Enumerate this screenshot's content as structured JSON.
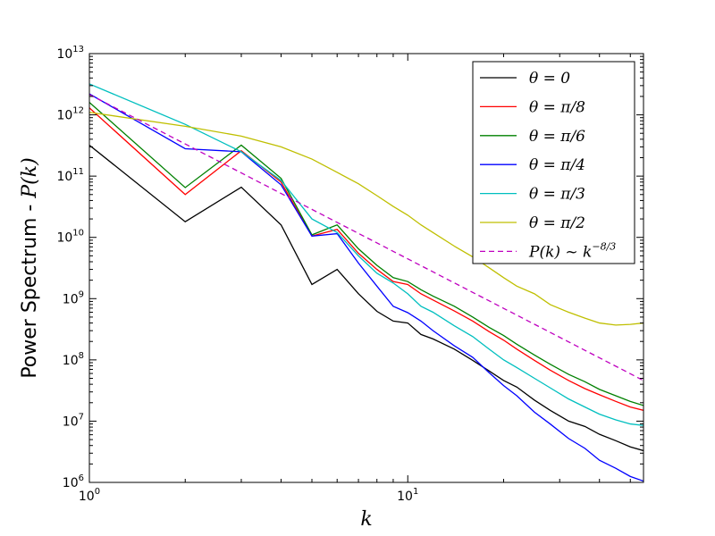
{
  "chart_data": {
    "type": "line",
    "title": "",
    "xlabel": "k",
    "ylabel_prefix": "Power Spectrum - ",
    "ylabel_math": "P(k)",
    "xscale": "log",
    "yscale": "log",
    "xlim": [
      1,
      55
    ],
    "ylim": [
      1000000.0,
      10000000000000.0
    ],
    "x_ticks": [
      {
        "value": 1,
        "base": "10",
        "exp": "0"
      },
      {
        "value": 10,
        "base": "10",
        "exp": "1"
      }
    ],
    "y_ticks": [
      {
        "value": 1000000.0,
        "base": "10",
        "exp": "6"
      },
      {
        "value": 10000000.0,
        "base": "10",
        "exp": "7"
      },
      {
        "value": 100000000.0,
        "base": "10",
        "exp": "8"
      },
      {
        "value": 1000000000.0,
        "base": "10",
        "exp": "9"
      },
      {
        "value": 10000000000.0,
        "base": "10",
        "exp": "10"
      },
      {
        "value": 100000000000.0,
        "base": "10",
        "exp": "11"
      },
      {
        "value": 1000000000000.0,
        "base": "10",
        "exp": "12"
      },
      {
        "value": 10000000000000.0,
        "base": "10",
        "exp": "13"
      }
    ],
    "legend_position": "top-right",
    "series": [
      {
        "name": "θ = 0",
        "legend_label": "θ = 0",
        "color": "#000000",
        "dashed": false,
        "x": [
          1,
          2,
          3,
          4,
          5,
          6,
          7,
          8,
          9,
          10,
          11,
          12,
          14,
          16,
          18,
          20,
          22,
          25,
          28,
          32,
          36,
          40,
          45,
          50,
          55
        ],
        "y": [
          320000000000.0,
          18000000000.0,
          66000000000.0,
          16000000000.0,
          1700000000.0,
          3000000000.0,
          1200000000.0,
          620000000.0,
          430000000.0,
          400000000.0,
          260000000.0,
          220000000.0,
          150000000.0,
          98000000.0,
          66000000.0,
          46000000.0,
          36000000.0,
          22000000.0,
          15000000.0,
          10000000.0,
          8200000.0,
          6100000.0,
          4800000.0,
          3800000.0,
          3300000.0
        ]
      },
      {
        "name": "θ = π/8",
        "legend_label": "θ = π/8",
        "color": "#ff0000",
        "dashed": false,
        "x": [
          1,
          2,
          3,
          4,
          5,
          6,
          7,
          8,
          9,
          10,
          11,
          12,
          14,
          16,
          18,
          20,
          22,
          25,
          28,
          32,
          36,
          40,
          45,
          50,
          55
        ],
        "y": [
          1300000000000.0,
          50000000000.0,
          260000000000.0,
          80000000000.0,
          10500000000.0,
          13500000000.0,
          5500000000.0,
          3000000000.0,
          1900000000.0,
          1700000000.0,
          1200000000.0,
          950000000.0,
          630000000.0,
          430000000.0,
          290000000.0,
          210000000.0,
          150000000.0,
          98000000.0,
          68000000.0,
          46000000.0,
          34000000.0,
          27000000.0,
          21000000.0,
          17000000.0,
          15000000.0
        ]
      },
      {
        "name": "θ = π/6",
        "legend_label": "θ = π/6",
        "color": "#008000",
        "dashed": false,
        "x": [
          1,
          2,
          3,
          4,
          5,
          6,
          7,
          8,
          9,
          10,
          11,
          12,
          14,
          16,
          18,
          20,
          22,
          25,
          28,
          32,
          36,
          40,
          45,
          50,
          55
        ],
        "y": [
          1600000000000.0,
          65000000000.0,
          320000000000.0,
          92000000000.0,
          11000000000.0,
          16000000000.0,
          6500000000.0,
          3500000000.0,
          2200000000.0,
          1900000000.0,
          1400000000.0,
          1100000000.0,
          750000000.0,
          500000000.0,
          340000000.0,
          250000000.0,
          180000000.0,
          120000000.0,
          85000000.0,
          58000000.0,
          44000000.0,
          33000000.0,
          26000000.0,
          21000000.0,
          18000000.0
        ]
      },
      {
        "name": "θ = π/4",
        "legend_label": "θ = π/4",
        "color": "#0000ff",
        "dashed": false,
        "x": [
          1,
          2,
          3,
          4,
          5,
          6,
          7,
          8,
          9,
          10,
          11,
          12,
          14,
          16,
          18,
          20,
          22,
          25,
          28,
          32,
          36,
          40,
          45,
          50,
          55
        ],
        "y": [
          2200000000000.0,
          280000000000.0,
          250000000000.0,
          72000000000.0,
          10500000000.0,
          11500000000.0,
          3800000000.0,
          1600000000.0,
          750000000.0,
          590000000.0,
          430000000.0,
          300000000.0,
          170000000.0,
          110000000.0,
          62000000.0,
          38000000.0,
          26000000.0,
          14000000.0,
          9000000.0,
          5200000.0,
          3600000.0,
          2300000.0,
          1700000.0,
          1250000.0,
          1050000.0
        ]
      },
      {
        "name": "θ = π/3",
        "legend_label": "θ = π/3",
        "color": "#00bfbf",
        "dashed": false,
        "x": [
          1,
          2,
          3,
          4,
          5,
          6,
          7,
          8,
          9,
          10,
          11,
          12,
          14,
          16,
          18,
          20,
          22,
          25,
          28,
          32,
          36,
          40,
          45,
          50,
          55
        ],
        "y": [
          3200000000000.0,
          700000000000.0,
          250000000000.0,
          85000000000.0,
          20000000000.0,
          12000000000.0,
          5000000000.0,
          2600000000.0,
          1800000000.0,
          1200000000.0,
          750000000.0,
          600000000.0,
          360000000.0,
          240000000.0,
          150000000.0,
          100000000.0,
          75000000.0,
          50000000.0,
          35000000.0,
          23000000.0,
          17000000.0,
          13000000.0,
          10500000.0,
          9000000.0,
          8500000.0
        ]
      },
      {
        "name": "θ = π/2",
        "legend_label": "θ = π/2",
        "color": "#bfbf00",
        "dashed": false,
        "x": [
          1,
          2,
          3,
          4,
          5,
          6,
          7,
          8,
          9,
          10,
          11,
          12,
          14,
          16,
          18,
          20,
          22,
          25,
          28,
          32,
          36,
          40,
          45,
          50,
          55
        ],
        "y": [
          1100000000000.0,
          650000000000.0,
          450000000000.0,
          300000000000.0,
          190000000000.0,
          115000000000.0,
          75000000000.0,
          48000000000.0,
          32000000000.0,
          23000000000.0,
          16000000000.0,
          12000000000.0,
          7200000000.0,
          4800000000.0,
          3200000000.0,
          2200000000.0,
          1600000000.0,
          1200000000.0,
          800000000.0,
          600000000.0,
          480000000.0,
          400000000.0,
          370000000.0,
          380000000.0,
          400000000.0
        ]
      },
      {
        "name": "P(k) ~ k^(-8/3)",
        "legend_label": "P(k) ~ k",
        "legend_exp": "−8/3",
        "color": "#bf00bf",
        "dashed": true,
        "reference_power_law": {
          "amplitude": 2150000000000.0,
          "exponent": -2.6667
        },
        "x": [
          1,
          55
        ],
        "y": [
          2150000000000.0,
          46000000.0
        ]
      }
    ]
  }
}
